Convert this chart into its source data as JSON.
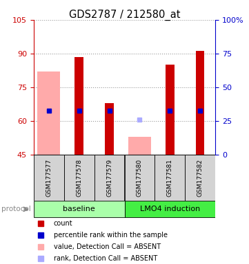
{
  "title": "GDS2787 / 212580_at",
  "samples": [
    "GSM177577",
    "GSM177578",
    "GSM177579",
    "GSM177580",
    "GSM177581",
    "GSM177582"
  ],
  "ylim_left": [
    45,
    105
  ],
  "ylim_right": [
    0,
    100
  ],
  "yticks_left": [
    45,
    60,
    75,
    90,
    105
  ],
  "yticks_right": [
    0,
    25,
    50,
    75,
    100
  ],
  "ytick_labels_right": [
    "0",
    "25",
    "50",
    "75",
    "100%"
  ],
  "count_values": [
    null,
    88.5,
    68.0,
    null,
    85.0,
    91.0
  ],
  "count_color": "#cc0000",
  "rank_values": [
    64.5,
    64.5,
    64.5,
    null,
    64.5,
    64.5
  ],
  "rank_color": "#0000cc",
  "absent_value_values": [
    82.0,
    null,
    null,
    53.0,
    null,
    null
  ],
  "absent_value_color": "#ffaaaa",
  "absent_rank_values": [
    null,
    null,
    null,
    60.5,
    null,
    null
  ],
  "absent_rank_color": "#aaaaff",
  "group_colors": {
    "baseline": "#aaffaa",
    "LMO4 induction": "#44ee44"
  },
  "legend_items": [
    {
      "color": "#cc0000",
      "label": "count"
    },
    {
      "color": "#0000cc",
      "label": "percentile rank within the sample"
    },
    {
      "color": "#ffaaaa",
      "label": "value, Detection Call = ABSENT"
    },
    {
      "color": "#aaaaff",
      "label": "rank, Detection Call = ABSENT"
    }
  ],
  "left_tick_color": "#cc0000",
  "right_tick_color": "#0000cc",
  "background_color": "#ffffff"
}
